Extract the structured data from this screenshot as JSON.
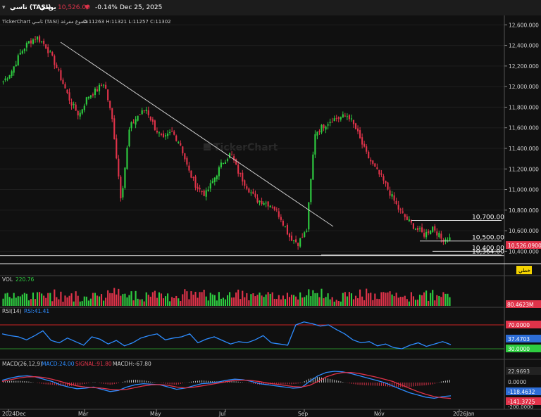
{
  "topbar": {
    "symbol": "تاسي (TASI)",
    "timeframe": "يومي",
    "price": "10,526.09",
    "change_pct": "-0.14%",
    "date": "Dec 25, 2025"
  },
  "header": {
    "source": "TickerChart تاسي (TASI) شموع مفرغة",
    "ohlc": "O:11263  H:11321  L:11257  C:11302"
  },
  "watermark": "TickerChart",
  "price_axis": [
    "12,600.000",
    "12,400.000",
    "12,200.000",
    "12,000.000",
    "11,800.000",
    "11,600.000",
    "11,400.000",
    "11,200.000",
    "11,000.000",
    "10,800.000",
    "10,600.000",
    "10,400.000"
  ],
  "levels": [
    {
      "label": "10,700.00",
      "value": 10700
    },
    {
      "label": "10,500.00",
      "value": 10500
    },
    {
      "label": "10,400.00",
      "value": 10400
    },
    {
      "label": "10,364.00",
      "value": 10364
    }
  ],
  "last_price_tag": "10,526.0900",
  "trendline_tag": "خطي",
  "volume": {
    "title": "VOL",
    "value": "220.76",
    "tag": "80.4623M"
  },
  "rsi": {
    "title": "RSI(14)",
    "value": "RSI:41.41",
    "upper": "70.0000",
    "current": "37.4703",
    "lower": "30.0000"
  },
  "macd": {
    "title": "MACD(26,12,9)",
    "macd": "MACD:24.00",
    "signal": "SIGNAL:91.80",
    "macdh": "MACDH:-67.80",
    "axis": [
      "22.9693",
      "0.0000",
      "-118.4632",
      "-141.3725",
      "-200.0000"
    ]
  },
  "time_axis": [
    "2024Dec",
    "Mar",
    "May",
    "Jul",
    "Sep",
    "Nov",
    "2026Jan"
  ],
  "colors": {
    "up": "#2ecc40",
    "down": "#e0334a",
    "bg": "#101010",
    "grid": "#222",
    "rsi_line": "#2d8cff",
    "signal": "#e0334a"
  },
  "chart_data": {
    "type": "candlestick",
    "close_path": [
      12050,
      12150,
      12320,
      12430,
      12480,
      12400,
      12250,
      12050,
      11850,
      11720,
      11900,
      11960,
      12040,
      11650,
      10900,
      11600,
      11720,
      11780,
      11600,
      11480,
      11560,
      11450,
      11180,
      11020,
      10950,
      11100,
      11260,
      11350,
      11150,
      11020,
      10900,
      10880,
      10840,
      10720,
      10540,
      10480,
      10600,
      11550,
      11620,
      11680,
      11700,
      11720,
      11560,
      11360,
      11220,
      11100,
      10950,
      10800,
      10700,
      10620,
      10560,
      10640,
      10520,
      10526
    ],
    "ylim": [
      10300,
      12650
    ]
  }
}
